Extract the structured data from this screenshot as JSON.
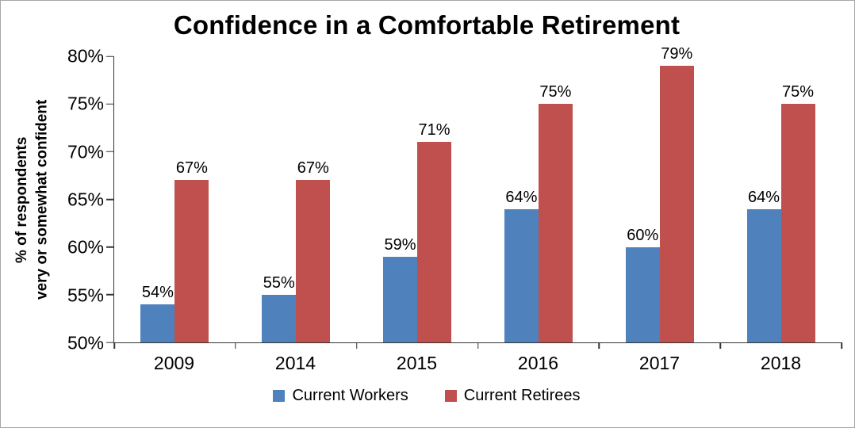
{
  "chart_data": {
    "type": "bar",
    "title": "Confidence in a Comfortable Retirement",
    "categories": [
      "2009",
      "2014",
      "2015",
      "2016",
      "2017",
      "2018"
    ],
    "series": [
      {
        "name": "Current Workers",
        "color": "#4F81BD",
        "values": [
          54,
          55,
          59,
          64,
          60,
          64
        ],
        "labels": [
          "54%",
          "55%",
          "59%",
          "64%",
          "60%",
          "64%"
        ]
      },
      {
        "name": "Current Retirees",
        "color": "#C0504D",
        "values": [
          67,
          67,
          71,
          75,
          79,
          75
        ],
        "labels": [
          "67%",
          "67%",
          "71%",
          "75%",
          "79%",
          "75%"
        ]
      }
    ],
    "ylabel_lines": [
      "% of respondents",
      "very or somewhat confident"
    ],
    "ylim": [
      50,
      80
    ],
    "yticks": [
      {
        "value": 50,
        "label": "50%"
      },
      {
        "value": 55,
        "label": "55%"
      },
      {
        "value": 60,
        "label": "60%"
      },
      {
        "value": 65,
        "label": "65%"
      },
      {
        "value": 70,
        "label": "70%"
      },
      {
        "value": 75,
        "label": "75%"
      },
      {
        "value": 80,
        "label": "80%"
      }
    ],
    "grid": false,
    "legend_position": "bottom"
  }
}
